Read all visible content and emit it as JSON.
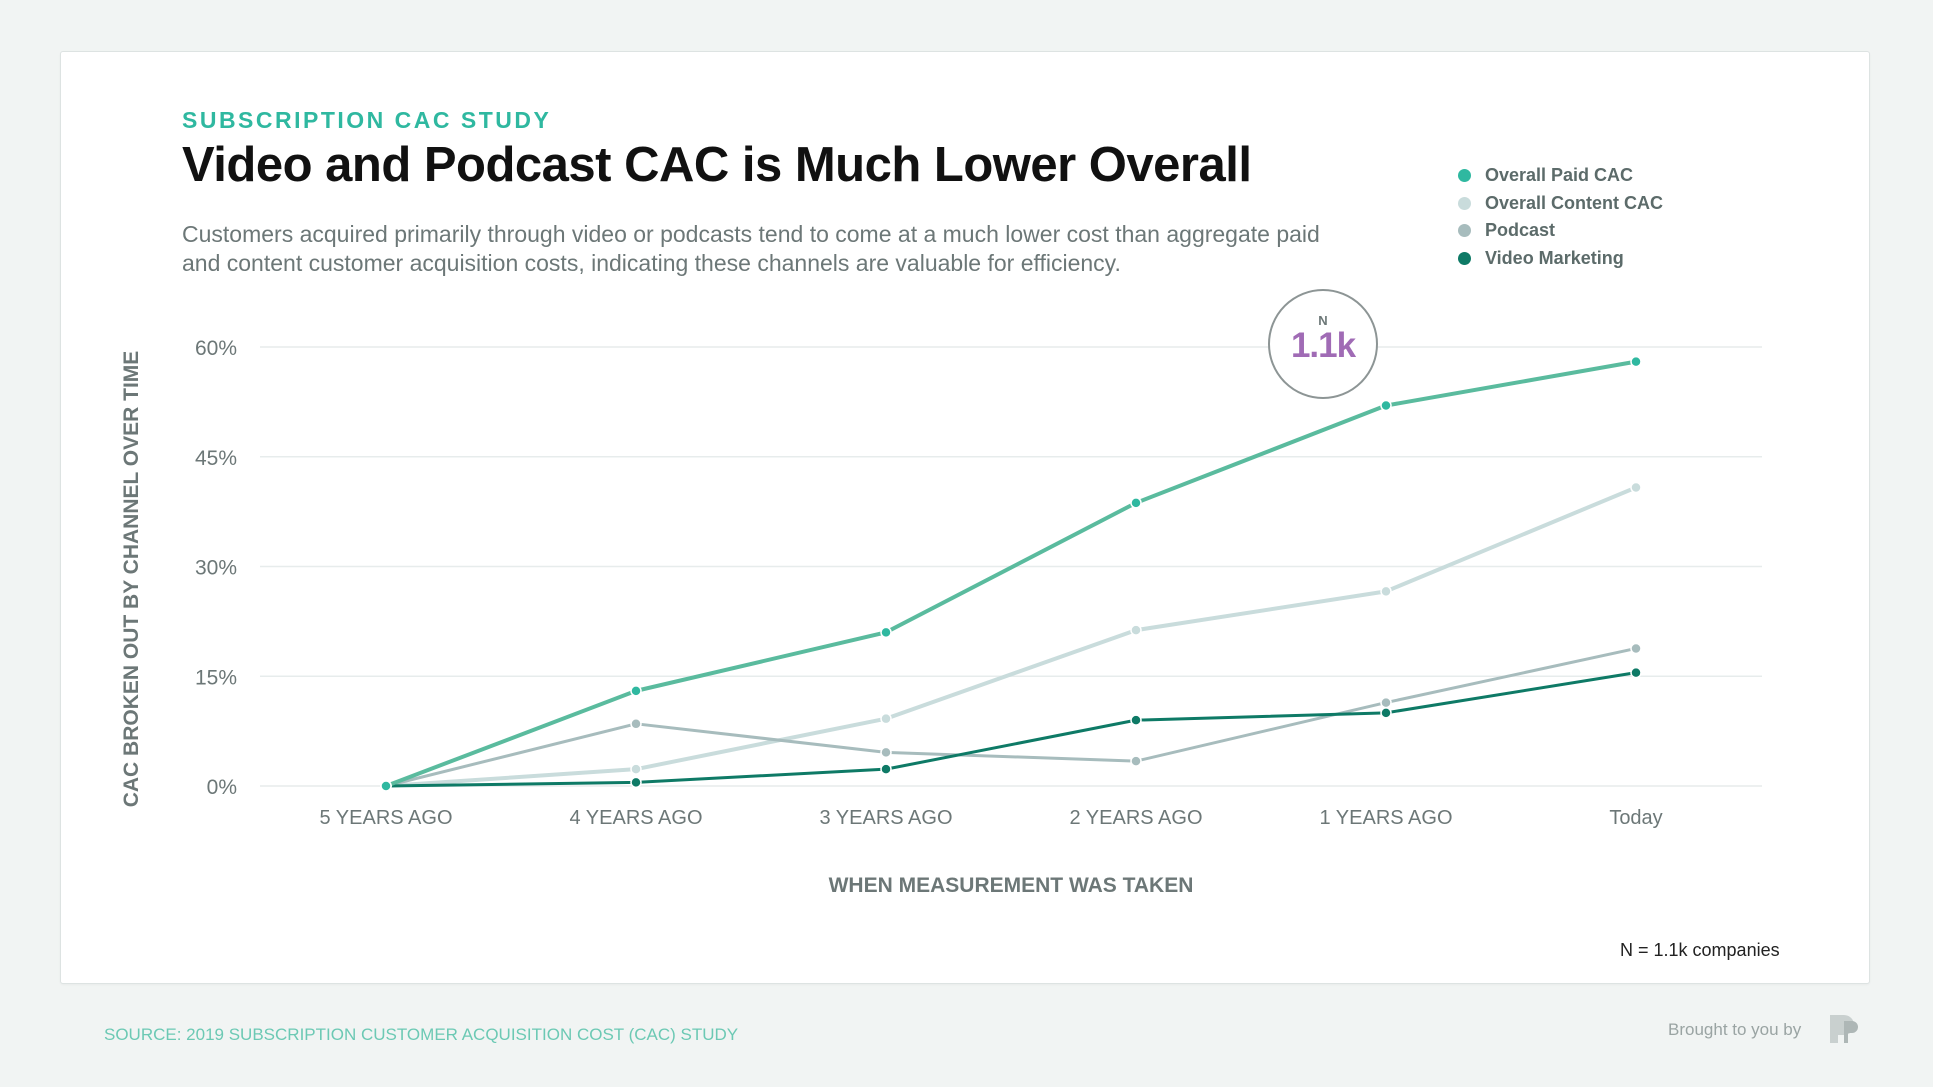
{
  "header": {
    "eyebrow": "SUBSCRIPTION CAC STUDY",
    "title": "Video and Podcast CAC is Much Lower Overall",
    "subtitle": "Customers acquired primarily through video or podcasts tend to come at a much lower cost than aggregate paid and content customer acquisition costs, indicating these channels are valuable for efficiency."
  },
  "badge": {
    "label": "N",
    "value": "1.1k"
  },
  "footnote": "N = 1.1k companies",
  "footer": {
    "source": "SOURCE: 2019 SUBSCRIPTION CUSTOMER ACQUISITION COST (CAC) STUDY",
    "brought_by": "Brought to you by"
  },
  "colors": {
    "overall_paid": "#2fb8a0",
    "overall_content": "#c9dcdc",
    "podcast": "#a7bcbd",
    "video": "#0e7a66",
    "paid_line": "#5abb9e"
  },
  "chart_data": {
    "type": "line",
    "title": "Video and Podcast CAC is Much Lower Overall",
    "xlabel": "WHEN MEASUREMENT WAS TAKEN",
    "ylabel": "CAC BROKEN OUT BY CHANNEL OVER TIME",
    "categories": [
      "5 YEARS AGO",
      "4 YEARS AGO",
      "3 YEARS AGO",
      "2 YEARS AGO",
      "1 YEARS AGO",
      "Today"
    ],
    "yticks": [
      "0%",
      "15%",
      "30%",
      "45%",
      "60%"
    ],
    "ylim": [
      0,
      60
    ],
    "grid": true,
    "legend_position": "top-right",
    "series": [
      {
        "name": "Overall Paid CAC",
        "values": [
          0,
          13,
          21,
          38.7,
          52,
          58
        ]
      },
      {
        "name": "Overall Content CAC",
        "values": [
          0,
          2.3,
          9.2,
          21.3,
          26.6,
          40.8
        ]
      },
      {
        "name": "Podcast",
        "values": [
          0,
          8.5,
          4.6,
          3.4,
          11.4,
          18.8
        ]
      },
      {
        "name": "Video Marketing",
        "values": [
          0,
          0.5,
          2.3,
          9,
          10,
          15.5
        ]
      }
    ]
  }
}
